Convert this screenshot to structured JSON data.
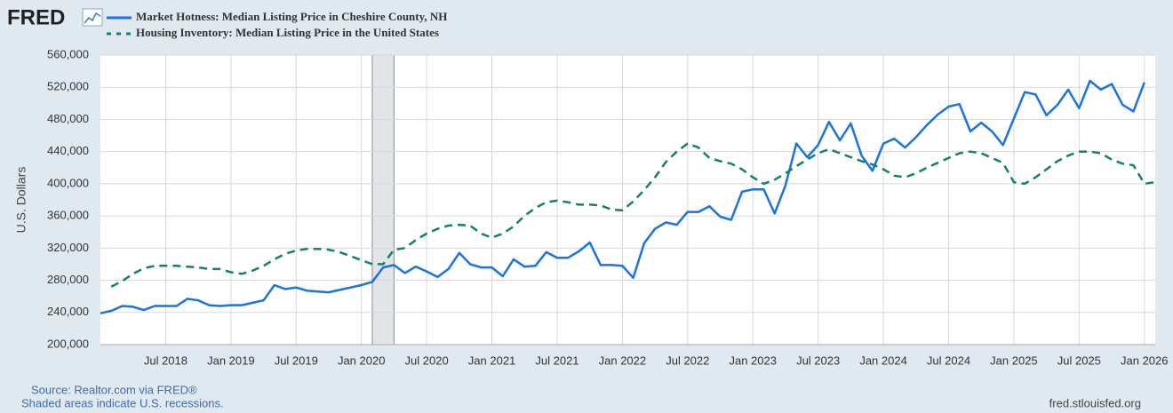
{
  "logo": "FRED",
  "chart_data": {
    "type": "line",
    "y_label": "U.S. Dollars",
    "source": "Source: Realtor.com via FRED®",
    "note": "Shaded areas indicate U.S. recessions.",
    "site": "fred.stlouisfed.org",
    "grid": true,
    "recessions": [
      {
        "start": "2020-02",
        "end": "2020-04"
      }
    ],
    "x": [
      "2018-01",
      "2018-02",
      "2018-03",
      "2018-04",
      "2018-05",
      "2018-06",
      "2018-07",
      "2018-08",
      "2018-09",
      "2018-10",
      "2018-11",
      "2018-12",
      "2019-01",
      "2019-02",
      "2019-03",
      "2019-04",
      "2019-05",
      "2019-06",
      "2019-07",
      "2019-08",
      "2019-09",
      "2019-10",
      "2019-11",
      "2019-12",
      "2020-01",
      "2020-02",
      "2020-03",
      "2020-04",
      "2020-05",
      "2020-06",
      "2020-07",
      "2020-08",
      "2020-09",
      "2020-10",
      "2020-11",
      "2020-12",
      "2021-01",
      "2021-02",
      "2021-03",
      "2021-04",
      "2021-05",
      "2021-06",
      "2021-07",
      "2021-08",
      "2021-09",
      "2021-10",
      "2021-11",
      "2021-12",
      "2022-01",
      "2022-02",
      "2022-03",
      "2022-04",
      "2022-05",
      "2022-06",
      "2022-07",
      "2022-08",
      "2022-09",
      "2022-10",
      "2022-11",
      "2022-12",
      "2023-01",
      "2023-02",
      "2023-03",
      "2023-04",
      "2023-05",
      "2023-06",
      "2023-07",
      "2023-08",
      "2023-09",
      "2023-10",
      "2023-11",
      "2023-12",
      "2024-01",
      "2024-02",
      "2024-03",
      "2024-04",
      "2024-05",
      "2024-06",
      "2024-07",
      "2024-08",
      "2024-09",
      "2024-10",
      "2024-11",
      "2024-12",
      "2025-01",
      "2025-02",
      "2025-03",
      "2025-04",
      "2025-05",
      "2025-06",
      "2025-07",
      "2025-08",
      "2025-09",
      "2025-10",
      "2025-11",
      "2025-12",
      "2026-01",
      "2026-02"
    ],
    "xlim": [
      "2018-01",
      "2026-02"
    ],
    "xticks": [
      {
        "value": "2018-07",
        "label": "Jul 2018"
      },
      {
        "value": "2019-01",
        "label": "Jan 2019"
      },
      {
        "value": "2019-07",
        "label": "Jul 2019"
      },
      {
        "value": "2020-01",
        "label": "Jan 2020"
      },
      {
        "value": "2020-07",
        "label": "Jul 2020"
      },
      {
        "value": "2021-01",
        "label": "Jan 2021"
      },
      {
        "value": "2021-07",
        "label": "Jul 2021"
      },
      {
        "value": "2022-01",
        "label": "Jan 2022"
      },
      {
        "value": "2022-07",
        "label": "Jul 2022"
      },
      {
        "value": "2023-01",
        "label": "Jan 2023"
      },
      {
        "value": "2023-07",
        "label": "Jul 2023"
      },
      {
        "value": "2024-01",
        "label": "Jan 2024"
      },
      {
        "value": "2024-07",
        "label": "Jul 2024"
      },
      {
        "value": "2025-01",
        "label": "Jan 2025"
      },
      {
        "value": "2025-07",
        "label": "Jul 2025"
      },
      {
        "value": "2026-01",
        "label": "Jan 2026"
      }
    ],
    "ylim": [
      200000,
      560000
    ],
    "yticks": [
      {
        "value": 200000,
        "label": "200,000"
      },
      {
        "value": 240000,
        "label": "240,000"
      },
      {
        "value": 280000,
        "label": "280,000"
      },
      {
        "value": 320000,
        "label": "320,000"
      },
      {
        "value": 360000,
        "label": "360,000"
      },
      {
        "value": 400000,
        "label": "400,000"
      },
      {
        "value": 440000,
        "label": "440,000"
      },
      {
        "value": 480000,
        "label": "480,000"
      },
      {
        "value": 520000,
        "label": "520,000"
      },
      {
        "value": 560000,
        "label": "560,000"
      }
    ],
    "series": [
      {
        "name": "Market Hotness: Median Listing Price in Cheshire County, NH",
        "color": "#1a73e0",
        "dash": false,
        "values": [
          239000,
          242000,
          248000,
          247000,
          243000,
          248000,
          248000,
          248000,
          257000,
          255000,
          249000,
          248000,
          249000,
          249000,
          252000,
          255000,
          274000,
          269000,
          271000,
          267000,
          266000,
          265000,
          268000,
          271000,
          274000,
          278000,
          296000,
          299000,
          289000,
          297000,
          291000,
          284000,
          294000,
          314000,
          300000,
          296000,
          296000,
          285000,
          306000,
          297000,
          298000,
          315000,
          308000,
          308000,
          316000,
          327000,
          299000,
          299000,
          298000,
          283000,
          326000,
          344000,
          352000,
          349000,
          365000,
          365000,
          372000,
          359000,
          355000,
          390000,
          393000,
          393000,
          363000,
          398000,
          450000,
          433000,
          448000,
          477000,
          454000,
          475000,
          435000,
          416000,
          450000,
          456000,
          445000,
          458000,
          473000,
          486000,
          496000,
          499000,
          465000,
          476000,
          465000,
          448000,
          481000,
          514000,
          511000,
          485000,
          498000,
          517000,
          494000,
          528000,
          517000,
          524000,
          498000,
          490000,
          526000,
          null
        ]
      },
      {
        "name": "Housing Inventory: Median Listing Price in the United States",
        "color": "#13806e",
        "dash": true,
        "values": [
          null,
          272000,
          279000,
          288000,
          295000,
          298000,
          298000,
          298000,
          297000,
          296000,
          294000,
          294000,
          290000,
          288000,
          292000,
          298000,
          306000,
          313000,
          317000,
          319000,
          319000,
          318000,
          315000,
          310000,
          305000,
          300000,
          300000,
          318000,
          320000,
          330000,
          338000,
          344000,
          348000,
          349000,
          348000,
          338000,
          333000,
          338000,
          347000,
          360000,
          370000,
          377000,
          379000,
          377000,
          374000,
          374000,
          373000,
          368000,
          367000,
          378000,
          392000,
          408000,
          427000,
          440000,
          450000,
          445000,
          432000,
          428000,
          425000,
          418000,
          408000,
          400000,
          405000,
          413000,
          422000,
          430000,
          438000,
          443000,
          438000,
          433000,
          428000,
          424000,
          418000,
          410000,
          408000,
          413000,
          420000,
          426000,
          432000,
          438000,
          440000,
          438000,
          432000,
          426000,
          402000,
          400000,
          408000,
          418000,
          428000,
          435000,
          440000,
          440000,
          438000,
          430000,
          425000,
          423000,
          400000,
          402000
        ]
      }
    ]
  }
}
